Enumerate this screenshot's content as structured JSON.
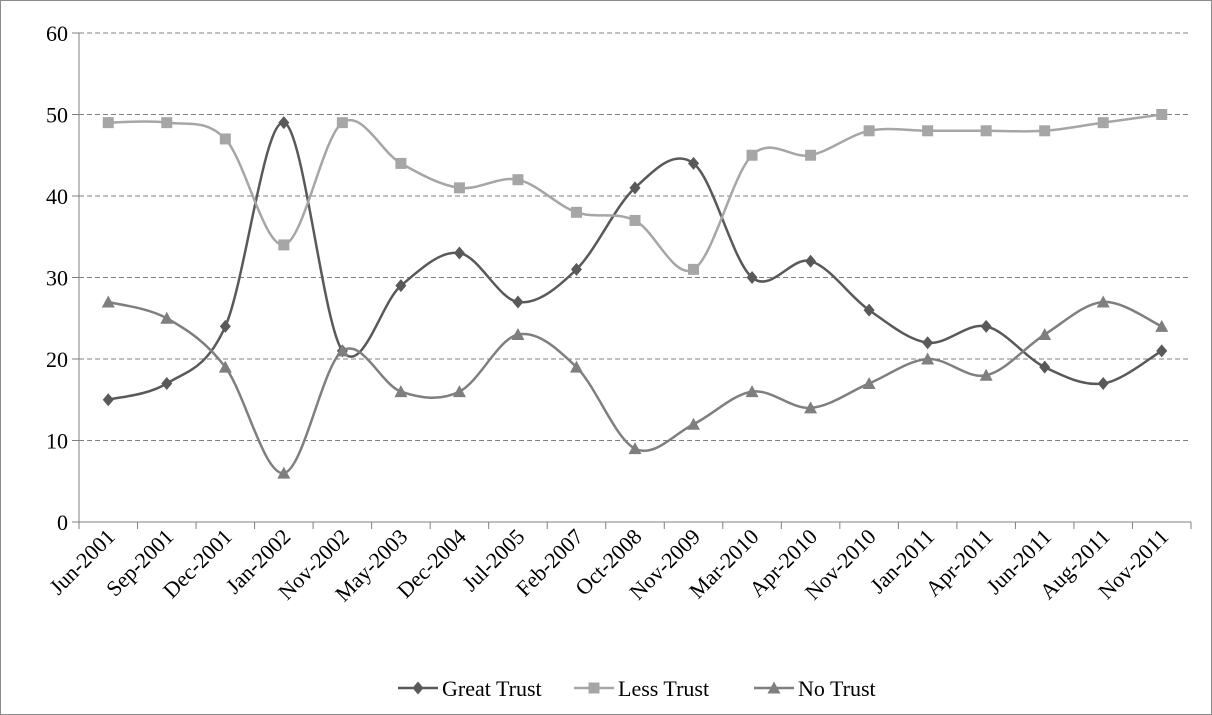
{
  "chart_data": {
    "type": "line",
    "smooth": true,
    "categories": [
      "Jun-2001",
      "Sep-2001",
      "Dec-2001",
      "Jan-2002",
      "Nov-2002",
      "May-2003",
      "Dec-2004",
      "Jul-2005",
      "Feb-2007",
      "Oct-2008",
      "Nov-2009",
      "Mar-2010",
      "Apr-2010",
      "Nov-2010",
      "Jan-2011",
      "Apr-2011",
      "Jun-2011",
      "Aug-2011",
      "Nov-2011"
    ],
    "series": [
      {
        "name": "Great Trust",
        "color": "#595959",
        "marker": "diamond",
        "values": [
          15,
          17,
          24,
          49,
          21,
          29,
          33,
          27,
          31,
          41,
          44,
          30,
          32,
          26,
          22,
          24,
          19,
          17,
          21
        ]
      },
      {
        "name": "Less Trust",
        "color": "#a6a6a6",
        "marker": "square",
        "values": [
          49,
          49,
          47,
          34,
          49,
          44,
          41,
          42,
          38,
          37,
          31,
          45,
          45,
          48,
          48,
          48,
          48,
          49,
          50
        ]
      },
      {
        "name": "No Trust",
        "color": "#7f7f7f",
        "marker": "triangle",
        "values": [
          27,
          25,
          19,
          6,
          21,
          16,
          16,
          23,
          19,
          9,
          12,
          16,
          14,
          17,
          20,
          18,
          23,
          27,
          24
        ]
      }
    ],
    "ylim": [
      0,
      60
    ],
    "yticks": [
      0,
      10,
      20,
      30,
      40,
      50,
      60
    ],
    "grid": "horizontal-dashed",
    "legend_position": "bottom",
    "title": "",
    "xlabel": "",
    "ylabel": ""
  }
}
